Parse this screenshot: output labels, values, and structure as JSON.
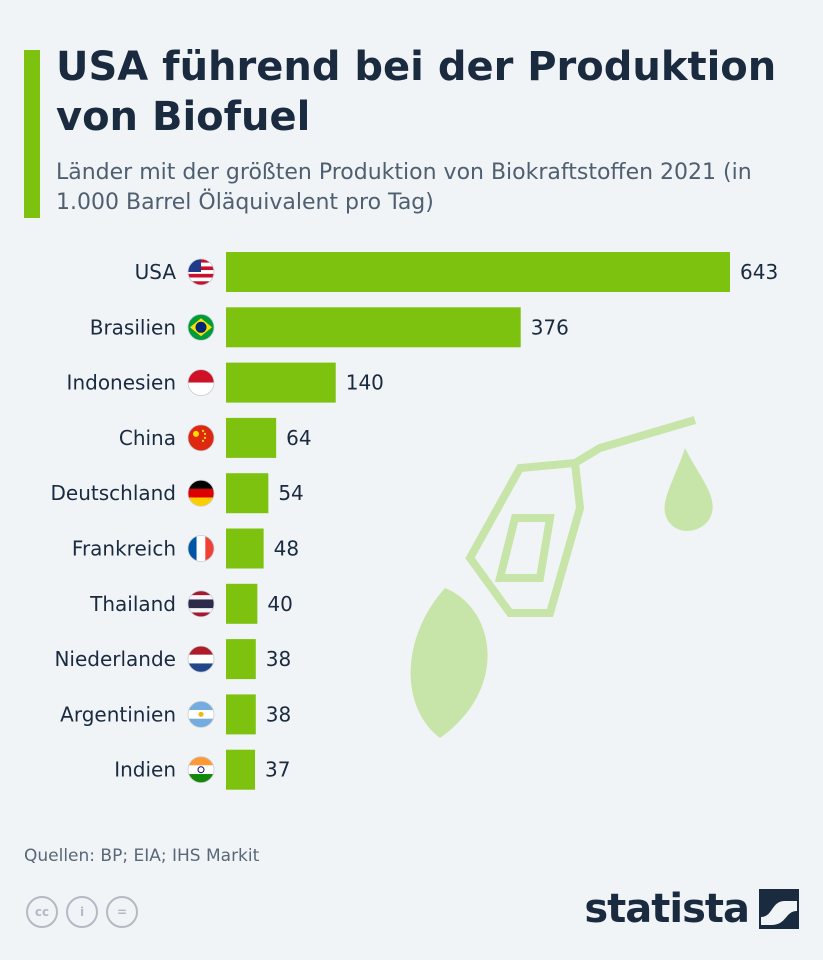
{
  "header": {
    "title": "USA führend bei der Produktion von Biofuel",
    "subtitle": "Länder mit der größten Produktion von Biokraftstoffen 2021 (in 1.000 Barrel Öläquivalent pro Tag)"
  },
  "colors": {
    "accent": "#7cc20f",
    "text": "#1a2a3f",
    "background": "#f1f4f7"
  },
  "chart_data": {
    "type": "bar",
    "orientation": "horizontal",
    "title": "USA führend bei der Produktion von Biofuel",
    "categories": [
      "USA",
      "Brasilien",
      "Indonesien",
      "China",
      "Deutschland",
      "Frankreich",
      "Thailand",
      "Niederlande",
      "Argentinien",
      "Indien"
    ],
    "values": [
      643,
      376,
      140,
      64,
      54,
      48,
      40,
      38,
      38,
      37
    ],
    "flags": [
      "flag-usa-icon",
      "flag-brazil-icon",
      "flag-indonesia-icon",
      "flag-china-icon",
      "flag-germany-icon",
      "flag-france-icon",
      "flag-thailand-icon",
      "flag-netherlands-icon",
      "flag-argentina-icon",
      "flag-india-icon"
    ],
    "xlim": [
      0,
      643
    ],
    "xlabel": "",
    "ylabel": "",
    "unit": "1.000 Barrel Öläquivalent pro Tag",
    "grid": false,
    "legend": "none"
  },
  "footer": {
    "source": "Quellen: BP; EIA; IHS Markit",
    "brand": "statista",
    "license_icons": [
      "cc-icon",
      "attribution-icon",
      "no-derivatives-icon"
    ],
    "license_glyphs": [
      "cc",
      "i",
      "="
    ]
  },
  "decoration": {
    "icon": "biofuel-pump-icon"
  }
}
